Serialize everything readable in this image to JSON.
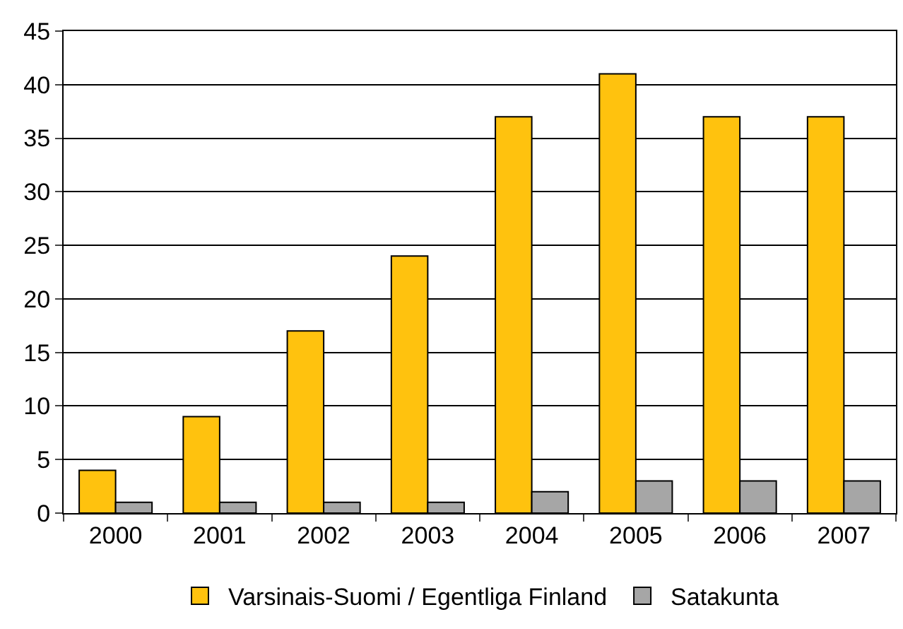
{
  "chart_data": {
    "type": "bar",
    "categories": [
      "2000",
      "2001",
      "2002",
      "2003",
      "2004",
      "2005",
      "2006",
      "2007"
    ],
    "series": [
      {
        "name": "Varsinais-Suomi / Egentliga Finland",
        "color": "#ffc20e",
        "values": [
          4,
          9,
          17,
          24,
          37,
          41,
          37,
          37
        ]
      },
      {
        "name": "Satakunta",
        "color": "#a6a6a6",
        "values": [
          1,
          1,
          1,
          1,
          2,
          3,
          3,
          3
        ]
      }
    ],
    "ylim": [
      0,
      45
    ],
    "yticks": [
      0,
      5,
      10,
      15,
      20,
      25,
      30,
      35,
      40,
      45
    ],
    "grid": "y",
    "legend": "bottom"
  }
}
